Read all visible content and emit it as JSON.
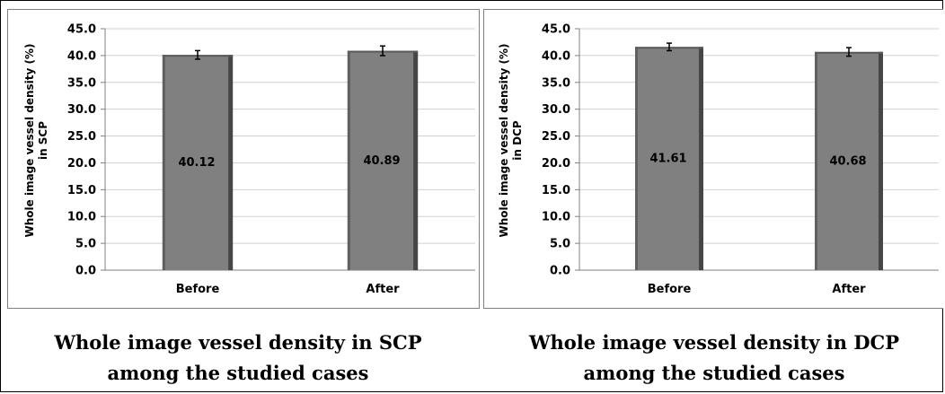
{
  "chart_data": [
    {
      "type": "bar",
      "categories": [
        "Before",
        "After"
      ],
      "values": [
        40.12,
        40.89
      ],
      "error": [
        0.8,
        0.9
      ],
      "data_labels": [
        "40.12",
        "40.89"
      ],
      "ylabel_lines": [
        "Whole image vessel density (%)",
        "in SCP"
      ],
      "ylim": [
        0,
        45
      ],
      "yticks": [
        "0.0",
        "5.0",
        "10.0",
        "15.0",
        "20.0",
        "25.0",
        "30.0",
        "35.0",
        "40.0",
        "45.0"
      ],
      "grid": true,
      "bar_color": "#808080",
      "caption_lines": [
        "Whole image vessel density in SCP",
        "among the studied cases"
      ]
    },
    {
      "type": "bar",
      "categories": [
        "Before",
        "After"
      ],
      "values": [
        41.61,
        40.68
      ],
      "error": [
        0.7,
        0.8
      ],
      "data_labels": [
        "41.61",
        "40.68"
      ],
      "ylabel_lines": [
        "Whole image vessel density (%)",
        "in DCP"
      ],
      "ylim": [
        0,
        45
      ],
      "yticks": [
        "0.0",
        "5.0",
        "10.0",
        "15.0",
        "20.0",
        "25.0",
        "30.0",
        "35.0",
        "40.0",
        "45.0"
      ],
      "grid": true,
      "bar_color": "#808080",
      "caption_lines": [
        "Whole image vessel density in DCP",
        "among the studied cases"
      ]
    }
  ]
}
